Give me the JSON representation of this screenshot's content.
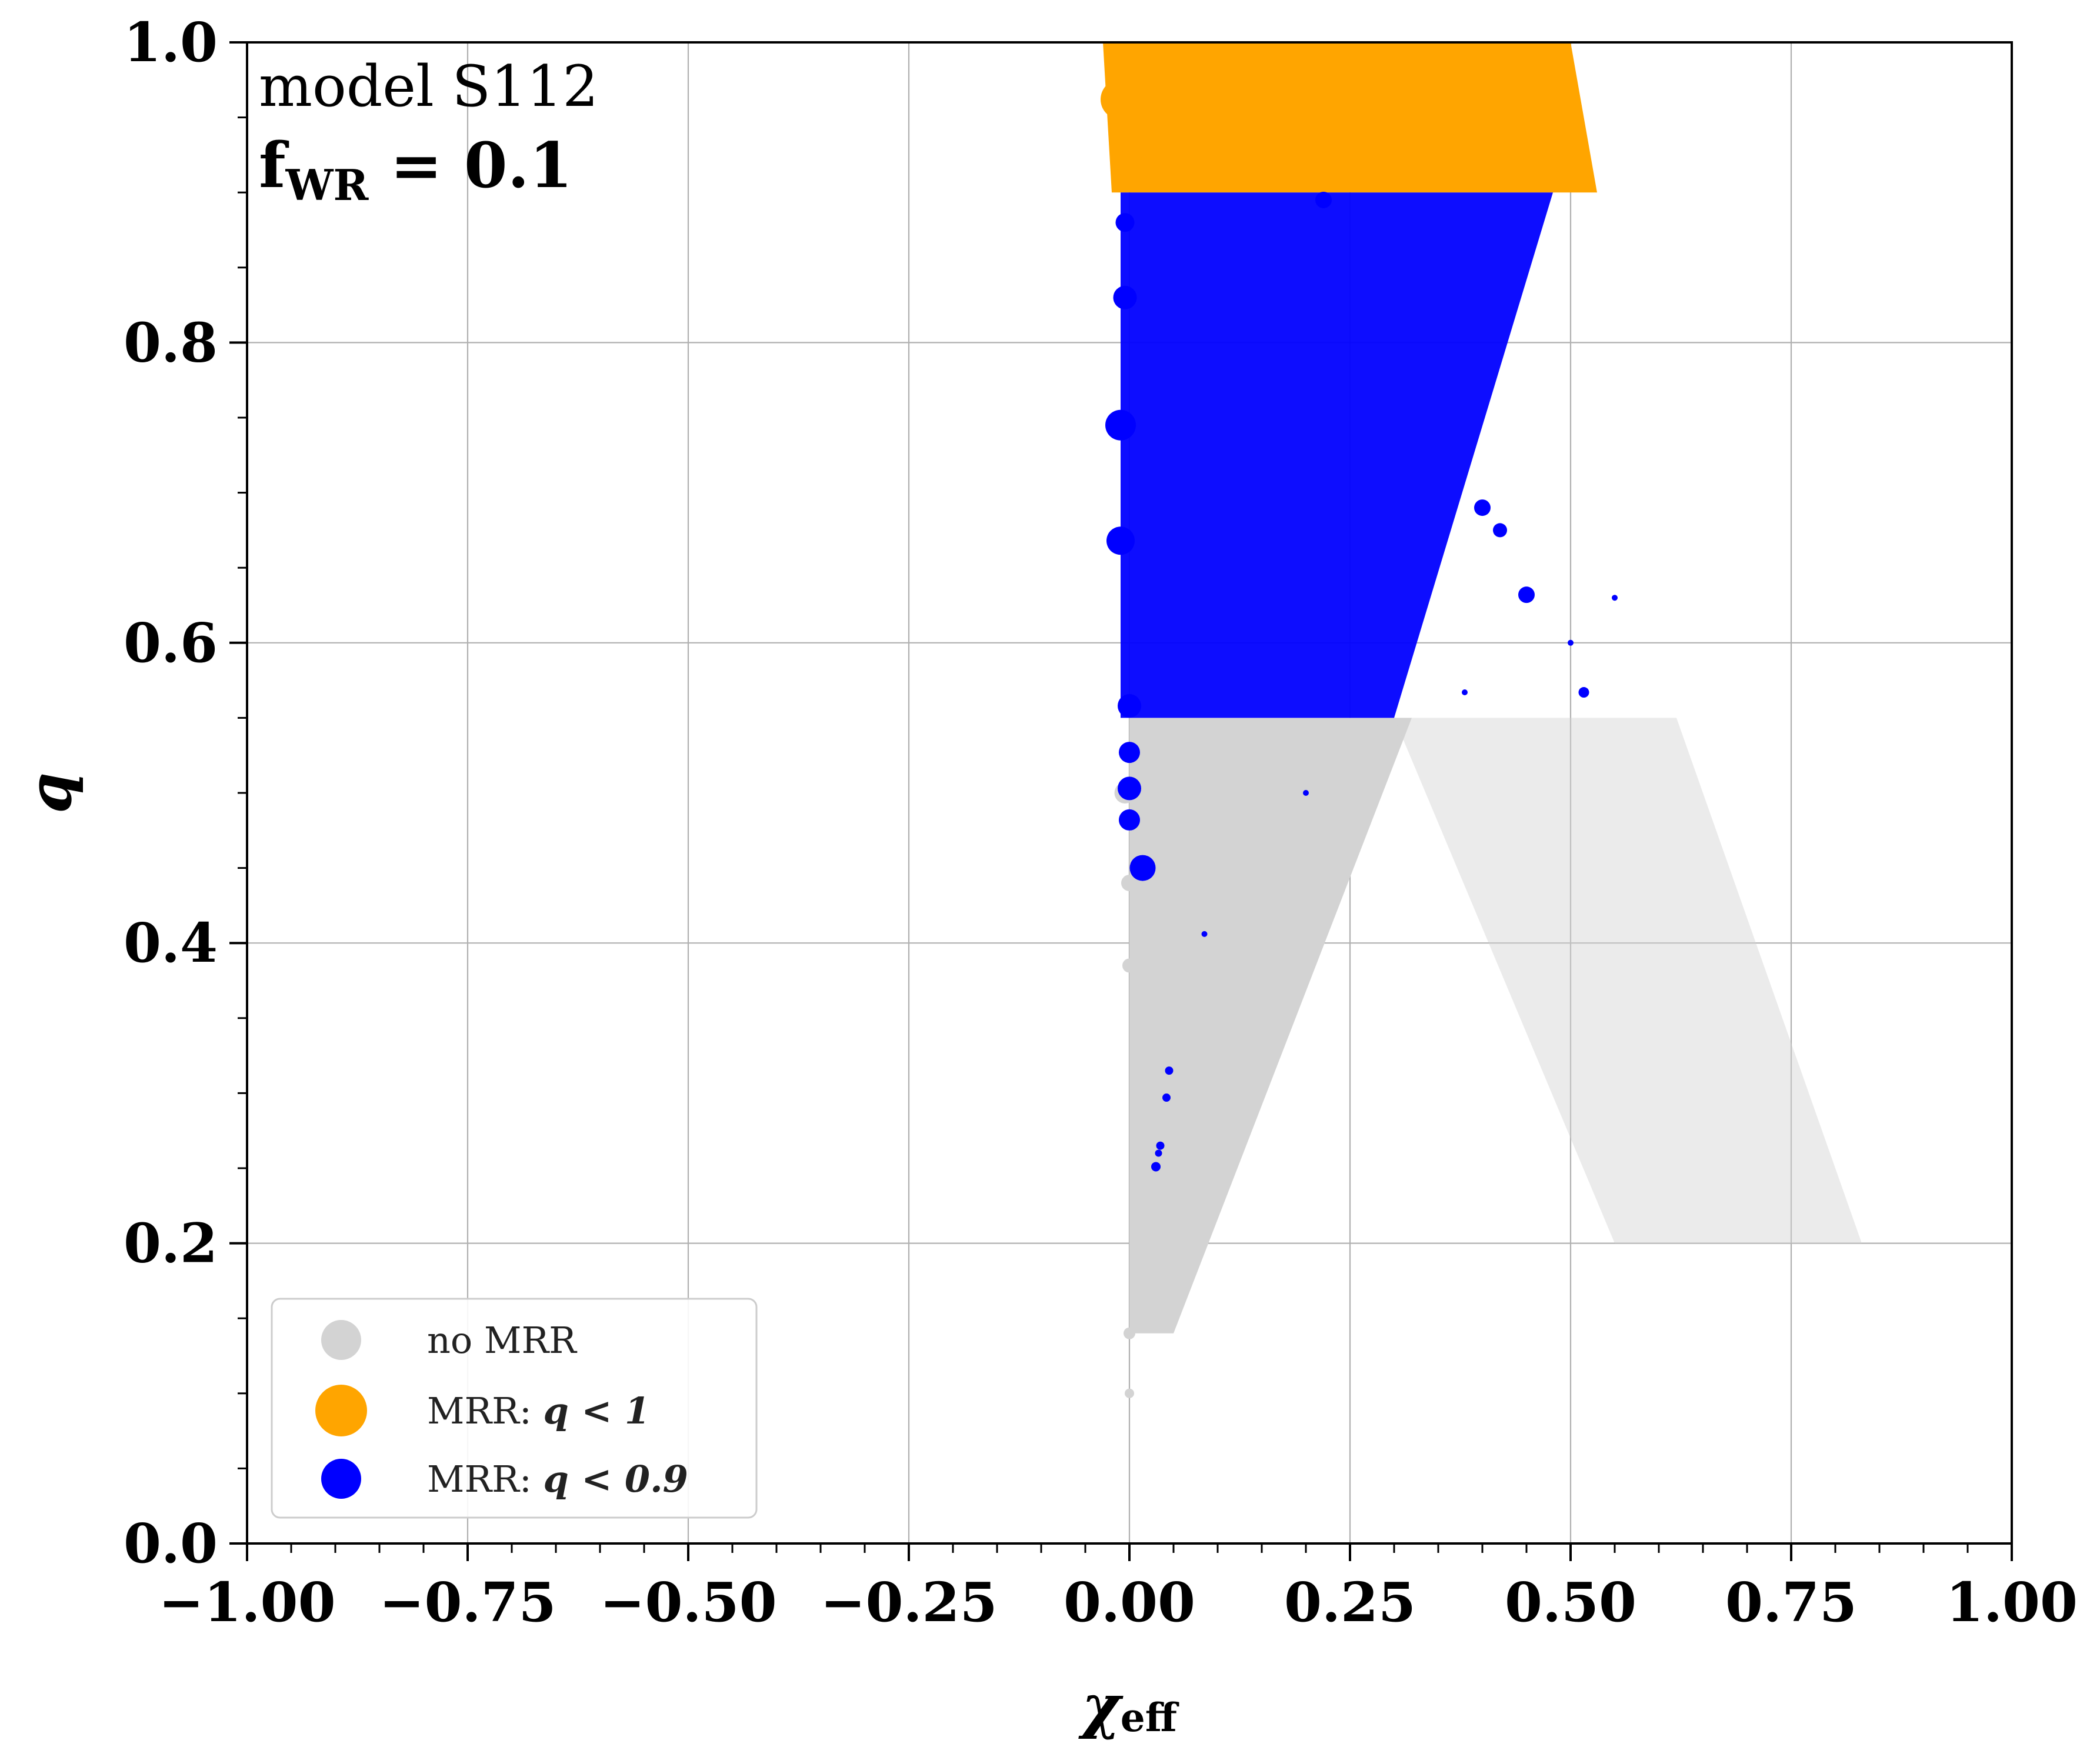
{
  "chart_data": {
    "type": "scatter",
    "xlabel": "χ",
    "xlabel_sub": "eff",
    "ylabel": "q",
    "xlim": [
      -1.0,
      1.0
    ],
    "ylim": [
      0.0,
      1.0
    ],
    "x_ticks": [
      "−1.00",
      "−0.75",
      "−0.50",
      "−0.25",
      "0.00",
      "0.25",
      "0.50",
      "0.75",
      "1.00"
    ],
    "y_ticks": [
      "0.0",
      "0.2",
      "0.4",
      "0.6",
      "0.8",
      "1.0"
    ],
    "grid": true,
    "annotations": {
      "model": "model S112",
      "f_main": "f",
      "f_sub": "WR",
      "f_value": " = 0.1"
    },
    "legend": {
      "location": "lower-left",
      "entries": [
        {
          "prefix": "no MRR",
          "math": "",
          "color": "#d3d3d3"
        },
        {
          "prefix": "MRR: ",
          "math": "q < 1",
          "color": "#ffa500"
        },
        {
          "prefix": "MRR: ",
          "math": "q < 0.9",
          "color": "#0000ff"
        }
      ]
    },
    "series": [
      {
        "name": "no MRR",
        "color": "#d3d3d3",
        "regions": [
          {
            "q_top": 0.55,
            "q_bottom": 0.14,
            "x_left_top": 0.0,
            "x_right_top": 0.32,
            "x_left_bottom": 0.0,
            "x_right_bottom": 0.05
          },
          {
            "q_top": 0.55,
            "q_bottom": 0.2,
            "x_left_top": 0.3,
            "x_right_top": 0.62,
            "x_left_bottom": 0.55,
            "x_right_bottom": 0.83
          }
        ],
        "points": [
          {
            "x": 0.0,
            "q": 0.44,
            "size": 14
          },
          {
            "x": -0.005,
            "q": 0.5,
            "size": 18
          },
          {
            "x": 0.0,
            "q": 0.385,
            "size": 12
          },
          {
            "x": 0.0,
            "q": 0.14,
            "size": 10
          },
          {
            "x": 0.0,
            "q": 0.1,
            "size": 8
          }
        ]
      },
      {
        "name": "MRR: q < 1",
        "color": "#ffa500",
        "regions": [
          {
            "q_top": 1.0,
            "q_bottom": 0.9,
            "x_left_top": -0.03,
            "x_right_top": 0.5,
            "x_left_bottom": -0.02,
            "x_right_bottom": 0.53
          }
        ],
        "points": [
          {
            "x": -0.01,
            "q": 0.962,
            "size": 34
          },
          {
            "x": 0.0,
            "q": 0.92,
            "size": 22
          }
        ]
      },
      {
        "name": "MRR: q < 0.9",
        "color": "#0000ff",
        "regions": [
          {
            "q_top": 0.9,
            "q_bottom": 0.55,
            "x_left_top": -0.01,
            "x_right_top": 0.48,
            "x_left_bottom": -0.01,
            "x_right_bottom": 0.3
          }
        ],
        "points": [
          {
            "x": -0.005,
            "q": 0.88,
            "size": 16
          },
          {
            "x": -0.005,
            "q": 0.83,
            "size": 20
          },
          {
            "x": -0.01,
            "q": 0.745,
            "size": 26
          },
          {
            "x": -0.01,
            "q": 0.668,
            "size": 24
          },
          {
            "x": 0.0,
            "q": 0.558,
            "size": 20
          },
          {
            "x": 0.0,
            "q": 0.527,
            "size": 18
          },
          {
            "x": 0.0,
            "q": 0.503,
            "size": 20
          },
          {
            "x": 0.0,
            "q": 0.482,
            "size": 18
          },
          {
            "x": 0.015,
            "q": 0.45,
            "size": 22
          },
          {
            "x": 0.22,
            "q": 0.895,
            "size": 14
          },
          {
            "x": 0.4,
            "q": 0.69,
            "size": 14
          },
          {
            "x": 0.42,
            "q": 0.675,
            "size": 12
          },
          {
            "x": 0.45,
            "q": 0.632,
            "size": 14
          },
          {
            "x": 0.515,
            "q": 0.567,
            "size": 9
          },
          {
            "x": 0.045,
            "q": 0.315,
            "size": 7
          },
          {
            "x": 0.042,
            "q": 0.297,
            "size": 7
          },
          {
            "x": 0.035,
            "q": 0.265,
            "size": 7
          },
          {
            "x": 0.033,
            "q": 0.26,
            "size": 6
          },
          {
            "x": 0.03,
            "q": 0.251,
            "size": 8
          },
          {
            "x": 0.085,
            "q": 0.406,
            "size": 5
          },
          {
            "x": 0.2,
            "q": 0.5,
            "size": 5
          },
          {
            "x": 0.5,
            "q": 0.6,
            "size": 5
          },
          {
            "x": 0.55,
            "q": 0.63,
            "size": 5
          },
          {
            "x": 0.38,
            "q": 0.567,
            "size": 5
          }
        ]
      }
    ]
  }
}
